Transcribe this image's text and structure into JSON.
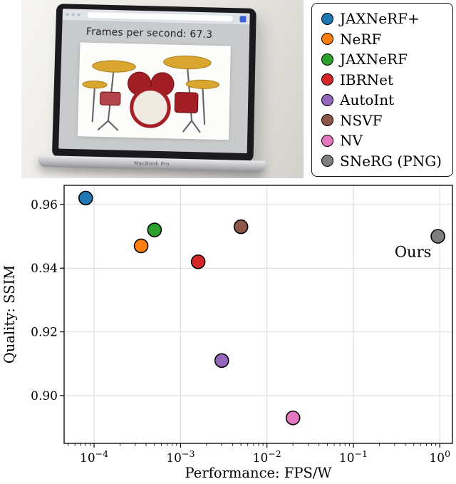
{
  "photo": {
    "fps_label": "Frames per second: 67.3",
    "laptop_brand": "MacBook Pro"
  },
  "legend": {
    "items": [
      {
        "label": "JAXNeRF+",
        "color": "#1f77b4"
      },
      {
        "label": "NeRF",
        "color": "#ff7f0e"
      },
      {
        "label": "JAXNeRF",
        "color": "#2ca02c"
      },
      {
        "label": "IBRNet",
        "color": "#d62728"
      },
      {
        "label": "AutoInt",
        "color": "#9467bd"
      },
      {
        "label": "NSVF",
        "color": "#8c564b"
      },
      {
        "label": "NV",
        "color": "#e377c2"
      },
      {
        "label": "SNeRG (PNG)",
        "color": "#7f7f7f"
      }
    ]
  },
  "chart_data": {
    "type": "scatter",
    "title": "",
    "xlabel": "Performance: FPS/W",
    "ylabel": "Quality: SSIM",
    "x_scale": "log",
    "xlim": [
      4.5e-05,
      1.4
    ],
    "ylim": [
      0.885,
      0.966
    ],
    "x_tick_exponents": [
      -4,
      -3,
      -2,
      -1,
      0
    ],
    "y_ticks": [
      0.9,
      0.92,
      0.94,
      0.96
    ],
    "grid": true,
    "grid_color": "#d9d9d9",
    "marker_edge_color": "#000000",
    "legend_position": "outside-upper-right",
    "annotation": {
      "text": "Ours",
      "x": 0.3,
      "y": 0.9435
    },
    "series": [
      {
        "name": "JAXNeRF+",
        "color": "#1f77b4",
        "x": 8e-05,
        "y": 0.962
      },
      {
        "name": "NeRF",
        "color": "#ff7f0e",
        "x": 0.00035,
        "y": 0.947
      },
      {
        "name": "JAXNeRF",
        "color": "#2ca02c",
        "x": 0.0005,
        "y": 0.952
      },
      {
        "name": "IBRNet",
        "color": "#d62728",
        "x": 0.0016,
        "y": 0.942
      },
      {
        "name": "AutoInt",
        "color": "#9467bd",
        "x": 0.003,
        "y": 0.911
      },
      {
        "name": "NSVF",
        "color": "#8c564b",
        "x": 0.005,
        "y": 0.953
      },
      {
        "name": "NV",
        "color": "#e377c2",
        "x": 0.02,
        "y": 0.893
      },
      {
        "name": "SNeRG (PNG)",
        "color": "#7f7f7f",
        "x": 0.95,
        "y": 0.95
      }
    ]
  }
}
